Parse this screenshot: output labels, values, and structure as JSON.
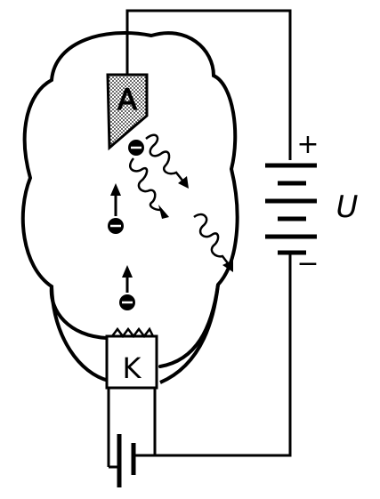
{
  "labels": {
    "anode": "A",
    "cathode": "K",
    "voltage": "U",
    "plus": "+",
    "minus": "−"
  },
  "colors": {
    "stroke": "#000000",
    "background": "#ffffff",
    "anode_fill": "#9a9a9a"
  },
  "icons": [
    "electron-icon",
    "x-ray-photon-icon",
    "battery-icon",
    "heater-coil-icon"
  ]
}
